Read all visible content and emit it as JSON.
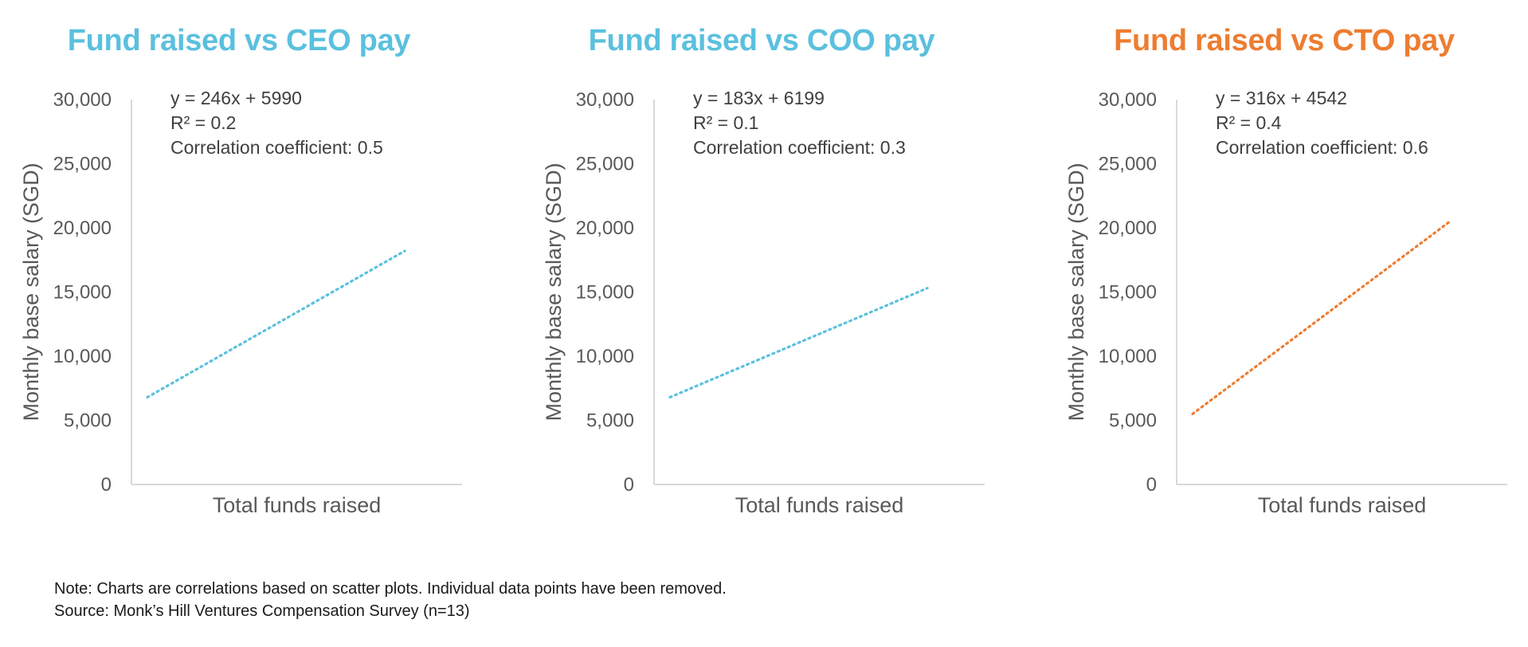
{
  "footer": {
    "note": "Note: Charts are correlations based on scatter plots. Individual data points have been removed.",
    "source": "Source: Monk’s Hill Ventures Compensation Survey (n=13)"
  },
  "chart_data": [
    {
      "type": "line",
      "title": "Fund raised vs CEO pay",
      "title_color": "#5BC0DE",
      "line_color": "#5BC0DE",
      "line_style": "dotted",
      "xlabel": "Total funds raised",
      "ylabel": "Monthly base salary (SGD)",
      "ylim": [
        0,
        30000
      ],
      "yticks": [
        "0",
        "5,000",
        "10,000",
        "15,000",
        "20,000",
        "25,000",
        "30,000"
      ],
      "annotations": [
        "y = 246x + 5990",
        "R² = 0.2",
        "Correlation coefficient: 0.5"
      ],
      "series": [
        {
          "values": [
            6800,
            18200
          ]
        }
      ]
    },
    {
      "type": "line",
      "title": "Fund raised vs COO pay",
      "title_color": "#5BC0DE",
      "line_color": "#5BC0DE",
      "line_style": "dotted",
      "xlabel": "Total funds raised",
      "ylabel": "Monthly base salary (SGD)",
      "ylim": [
        0,
        30000
      ],
      "yticks": [
        "0",
        "5,000",
        "10,000",
        "15,000",
        "20,000",
        "25,000",
        "30,000"
      ],
      "annotations": [
        "y = 183x + 6199",
        "R² = 0.1",
        "Correlation coefficient: 0.3"
      ],
      "series": [
        {
          "values": [
            6800,
            15300
          ]
        }
      ]
    },
    {
      "type": "line",
      "title": "Fund raised vs CTO pay",
      "title_color": "#ED7D31",
      "line_color": "#ED7D31",
      "line_style": "dotted",
      "xlabel": "Total funds raised",
      "ylabel": "Monthly base salary (SGD)",
      "ylim": [
        0,
        30000
      ],
      "yticks": [
        "0",
        "5,000",
        "10,000",
        "15,000",
        "20,000",
        "25,000",
        "30,000"
      ],
      "annotations": [
        "y = 316x + 4542",
        "R² = 0.4",
        "Correlation coefficient: 0.6"
      ],
      "series": [
        {
          "values": [
            5500,
            20500
          ]
        }
      ]
    }
  ]
}
